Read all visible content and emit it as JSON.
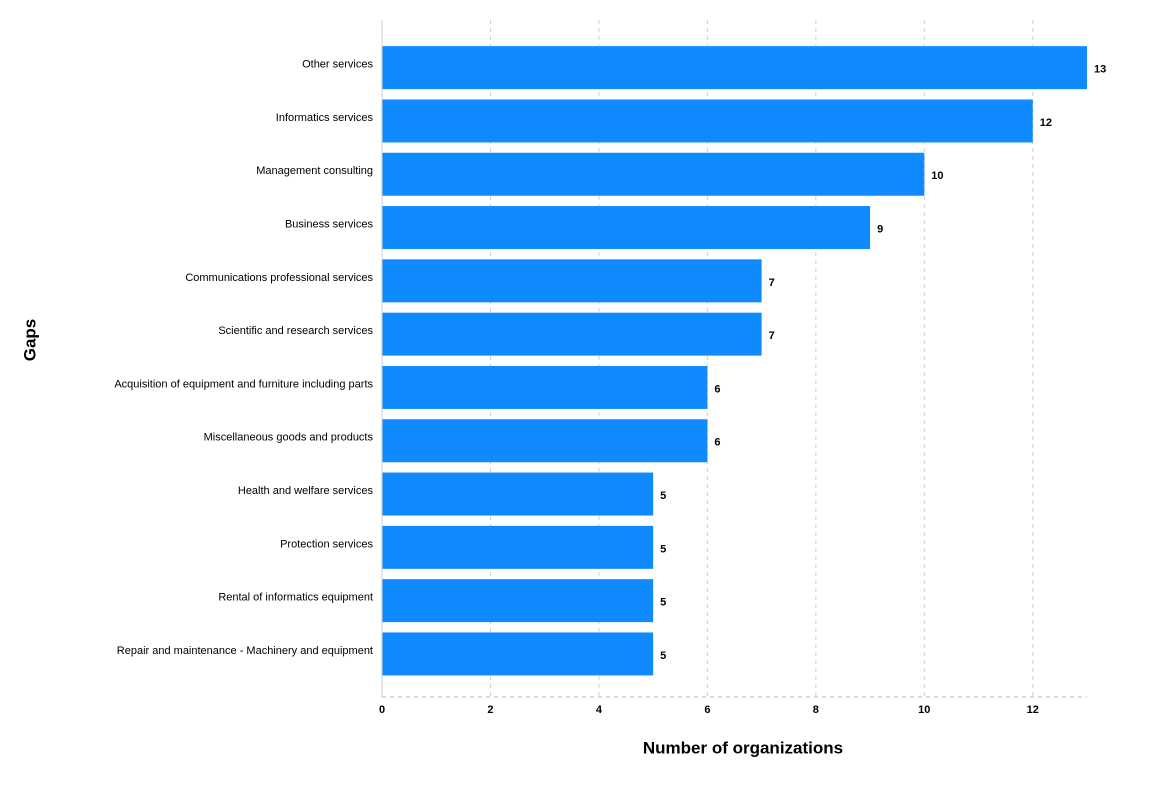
{
  "chart_data": {
    "type": "bar",
    "orientation": "horizontal",
    "x_label": "Number of organizations",
    "y_label": "Gaps",
    "categories": [
      "Other services",
      "Informatics services",
      "Management consulting",
      "Business services",
      "Communications professional services",
      "Scientific and research services",
      "Acquisition of equipment and furniture including parts",
      "Miscellaneous goods and products",
      "Health and welfare services",
      "Protection services",
      "Rental of informatics equipment",
      "Repair and maintenance - Machinery and equipment"
    ],
    "values": [
      13,
      12,
      10,
      9,
      7,
      7,
      6,
      6,
      5,
      5,
      5,
      5
    ],
    "color": "#0f8bff",
    "xlim": [
      0,
      13
    ],
    "xticks": [
      0,
      2,
      4,
      6,
      8,
      10,
      12
    ],
    "grid": true
  }
}
